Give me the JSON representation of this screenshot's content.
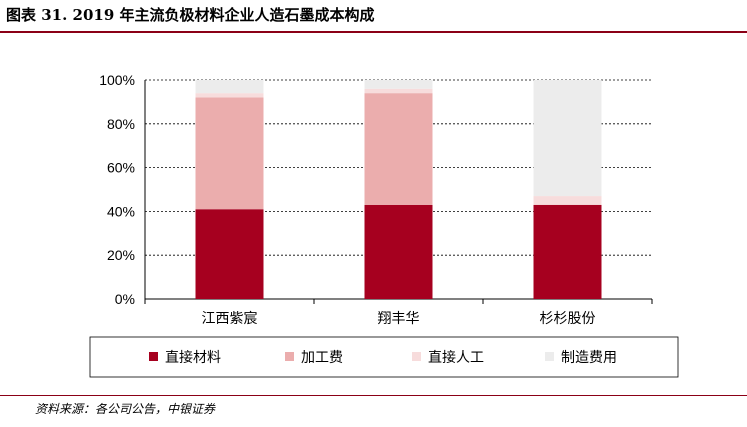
{
  "header": {
    "title": "图表 31. 2019 年主流负极材料企业人造石墨成本构成"
  },
  "footer": {
    "source": "资料来源：各公司公告，中银证券"
  },
  "colors": {
    "accent_rule": "#8b0016"
  },
  "chart_data": {
    "type": "bar",
    "stacked": true,
    "categories": [
      "江西紫宸",
      "翔丰华",
      "杉杉股份"
    ],
    "series": [
      {
        "name": "直接材料",
        "color": "#a6001f",
        "values": [
          41,
          43,
          43
        ]
      },
      {
        "name": "加工费",
        "color": "#ebadad",
        "values": [
          51,
          51,
          0
        ]
      },
      {
        "name": "直接人工",
        "color": "#f7dcdc",
        "values": [
          2,
          2,
          4
        ]
      },
      {
        "name": "制造费用",
        "color": "#ececec",
        "values": [
          6,
          4,
          53
        ]
      }
    ],
    "ylim": [
      0,
      100
    ],
    "yticks": [
      "0%",
      "20%",
      "40%",
      "60%",
      "80%",
      "100%"
    ],
    "grid": true,
    "legend_position": "bottom"
  }
}
